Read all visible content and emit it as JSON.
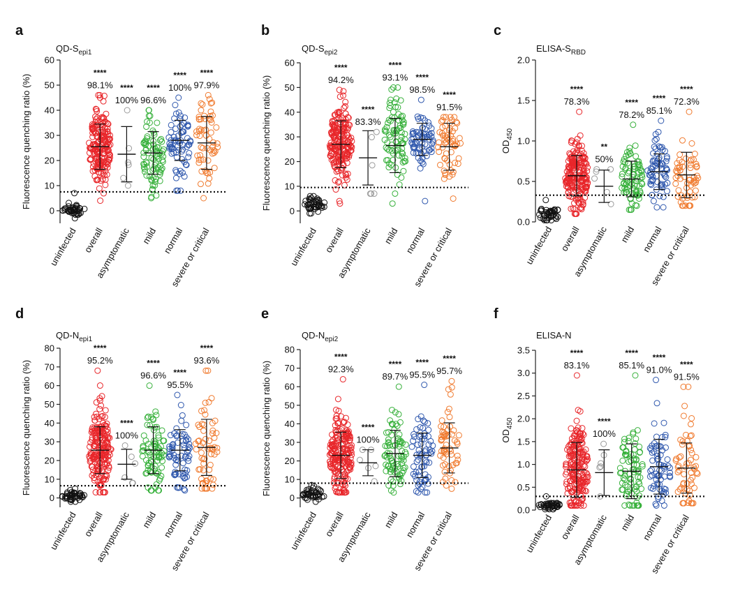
{
  "colors": {
    "uninfected": "#111111",
    "overall": "#e8262a",
    "asymptomatic": "#9a9a9a",
    "mild": "#36b03a",
    "normal": "#2e57ad",
    "severe": "#f07a2e",
    "axis": "#222222"
  },
  "chart_data": [
    {
      "type": "scatter",
      "panel_letter": "a",
      "title_main": "QD-S",
      "title_sub": "epi1",
      "ylabel": "Fluorescence quenching ratio (%)",
      "ylim": [
        -5,
        60
      ],
      "yticks": [
        "0",
        "10",
        "20",
        "30",
        "40",
        "50",
        "60"
      ],
      "threshold": 7.5,
      "categories": [
        "uninfected",
        "overall",
        "asymptomatic",
        "mild",
        "normal",
        "severe or critical"
      ],
      "groups": [
        {
          "mean": 0.5,
          "sd": 1.5,
          "min": -3,
          "max": 7,
          "n": 40
        },
        {
          "mean": 25.5,
          "sd": 9,
          "min": 4,
          "max": 46,
          "n": 200
        },
        {
          "mean": 22.5,
          "sd": 11,
          "min": 10,
          "max": 40,
          "n": 6
        },
        {
          "mean": 23,
          "sd": 8.5,
          "min": 5,
          "max": 40,
          "n": 85
        },
        {
          "mean": 28,
          "sd": 8,
          "min": 8,
          "max": 45,
          "n": 70
        },
        {
          "mean": 27,
          "sd": 10.5,
          "min": 5,
          "max": 46,
          "n": 60
        }
      ],
      "percent_labels": [
        "",
        "98.1%",
        "100%",
        "96.6%",
        "100%",
        "97.9%"
      ],
      "stars": [
        "",
        "****",
        "****",
        "****",
        "****",
        "****"
      ]
    },
    {
      "type": "scatter",
      "panel_letter": "b",
      "title_main": "QD-S",
      "title_sub": "epi2",
      "ylabel": "Fluorescence quenching ratio (%)",
      "ylim": [
        -5,
        60
      ],
      "yticks": [
        "0",
        "10",
        "20",
        "30",
        "40",
        "50",
        "60"
      ],
      "threshold": 9.5,
      "categories": [
        "uninfected",
        "overall",
        "asymptomatic",
        "mild",
        "normal",
        "severe or critical"
      ],
      "groups": [
        {
          "mean": 2.5,
          "sd": 2,
          "min": -1,
          "max": 6,
          "n": 40
        },
        {
          "mean": 27,
          "sd": 9.5,
          "min": 3,
          "max": 49,
          "n": 200
        },
        {
          "mean": 21.5,
          "sd": 11,
          "min": 7,
          "max": 32,
          "n": 6
        },
        {
          "mean": 26.5,
          "sd": 11,
          "min": 3,
          "max": 50,
          "n": 85
        },
        {
          "mean": 29,
          "sd": 6.5,
          "min": 4,
          "max": 45,
          "n": 70
        },
        {
          "mean": 26,
          "sd": 9.5,
          "min": 5,
          "max": 38,
          "n": 60
        }
      ],
      "percent_labels": [
        "",
        "94.2%",
        "83.3%",
        "93.1%",
        "98.5%",
        "91.5%"
      ],
      "stars": [
        "",
        "****",
        "****",
        "****",
        "****",
        "****"
      ]
    },
    {
      "type": "scatter",
      "panel_letter": "c",
      "title_main": "ELISA-S",
      "title_sub": "RBD",
      "ylabel": "OD450",
      "ylabel_main": "OD",
      "ylabel_sub": "450",
      "ylim": [
        0,
        2.0
      ],
      "yticks": [
        "0.0",
        "0.5",
        "1.0",
        "1.5",
        "2.0"
      ],
      "threshold": 0.33,
      "categories": [
        "uninfected",
        "overall",
        "asymptomatic",
        "mild",
        "normal",
        "severe or critical"
      ],
      "groups": [
        {
          "mean": 0.1,
          "sd": 0.05,
          "min": 0.02,
          "max": 0.27,
          "n": 40
        },
        {
          "mean": 0.57,
          "sd": 0.25,
          "min": 0.1,
          "max": 1.36,
          "n": 200
        },
        {
          "mean": 0.44,
          "sd": 0.2,
          "min": 0.22,
          "max": 0.65,
          "n": 6
        },
        {
          "mean": 0.53,
          "sd": 0.22,
          "min": 0.15,
          "max": 1.2,
          "n": 85
        },
        {
          "mean": 0.62,
          "sd": 0.22,
          "min": 0.18,
          "max": 1.25,
          "n": 70
        },
        {
          "mean": 0.58,
          "sd": 0.28,
          "min": 0.2,
          "max": 1.36,
          "n": 60
        }
      ],
      "percent_labels": [
        "",
        "78.3%",
        "50%",
        "78.2%",
        "85.1%",
        "72.3%"
      ],
      "stars": [
        "",
        "****",
        "**",
        "****",
        "****",
        "****"
      ]
    },
    {
      "type": "scatter",
      "panel_letter": "d",
      "title_main": "QD-N",
      "title_sub": "epi1",
      "ylabel": "Fluorescence quenching ratio (%)",
      "ylim": [
        -5,
        80
      ],
      "yticks": [
        "0",
        "10",
        "20",
        "30",
        "40",
        "50",
        "60",
        "70",
        "80"
      ],
      "threshold": 6.5,
      "categories": [
        "uninfected",
        "overall",
        "asymptomatic",
        "mild",
        "normal",
        "severe or critical"
      ],
      "groups": [
        {
          "mean": 1,
          "sd": 1.5,
          "min": -2,
          "max": 5,
          "n": 40
        },
        {
          "mean": 25.5,
          "sd": 12.5,
          "min": 3,
          "max": 68,
          "n": 200
        },
        {
          "mean": 18,
          "sd": 8,
          "min": 8,
          "max": 28,
          "n": 6
        },
        {
          "mean": 25.5,
          "sd": 12.5,
          "min": 4,
          "max": 60,
          "n": 85
        },
        {
          "mean": 25.5,
          "sd": 11,
          "min": 4,
          "max": 55,
          "n": 70
        },
        {
          "mean": 27,
          "sd": 15,
          "min": 5,
          "max": 68,
          "n": 60
        }
      ],
      "percent_labels": [
        "",
        "95.2%",
        "100%",
        "96.6%",
        "95.5%",
        "93.6%"
      ],
      "stars": [
        "",
        "****",
        "****",
        "****",
        "****",
        "****"
      ]
    },
    {
      "type": "scatter",
      "panel_letter": "e",
      "title_main": "QD-N",
      "title_sub": "epi2",
      "ylabel": "Fluorescence quenching ratio (%)",
      "ylim": [
        -5,
        80
      ],
      "yticks": [
        "0",
        "10",
        "20",
        "30",
        "40",
        "50",
        "60",
        "70",
        "80"
      ],
      "threshold": 8,
      "categories": [
        "uninfected",
        "overall",
        "asymptomatic",
        "mild",
        "normal",
        "severe or critical"
      ],
      "groups": [
        {
          "mean": 2,
          "sd": 2,
          "min": -2,
          "max": 7,
          "n": 40
        },
        {
          "mean": 23,
          "sd": 12.5,
          "min": 3,
          "max": 64,
          "n": 200
        },
        {
          "mean": 19,
          "sd": 7,
          "min": 9,
          "max": 26,
          "n": 6
        },
        {
          "mean": 24,
          "sd": 12.5,
          "min": 3,
          "max": 60,
          "n": 85
        },
        {
          "mean": 23,
          "sd": 12,
          "min": 3,
          "max": 61,
          "n": 70
        },
        {
          "mean": 27,
          "sd": 13.5,
          "min": 5,
          "max": 63,
          "n": 60
        }
      ],
      "percent_labels": [
        "",
        "92.3%",
        "100%",
        "89.7%",
        "95.5%",
        "95.7%"
      ],
      "stars": [
        "",
        "****",
        "****",
        "****",
        "****",
        "****"
      ]
    },
    {
      "type": "scatter",
      "panel_letter": "f",
      "title_main": "ELISA-N",
      "title_sub": "",
      "ylabel": "OD450",
      "ylabel_main": "OD",
      "ylabel_sub": "450",
      "ylim": [
        0,
        3.5
      ],
      "yticks": [
        "0.0",
        "0.5",
        "1.0",
        "1.5",
        "2.0",
        "2.5",
        "3.0",
        "3.5"
      ],
      "threshold": 0.3,
      "categories": [
        "uninfected",
        "overall",
        "asymptomatic",
        "mild",
        "normal",
        "severe or critical"
      ],
      "groups": [
        {
          "mean": 0.1,
          "sd": 0.05,
          "min": 0.02,
          "max": 0.3,
          "n": 40
        },
        {
          "mean": 0.88,
          "sd": 0.6,
          "min": 0.1,
          "max": 2.95,
          "n": 200
        },
        {
          "mean": 0.82,
          "sd": 0.5,
          "min": 0.3,
          "max": 1.45,
          "n": 6
        },
        {
          "mean": 0.85,
          "sd": 0.6,
          "min": 0.1,
          "max": 2.95,
          "n": 85
        },
        {
          "mean": 0.95,
          "sd": 0.6,
          "min": 0.1,
          "max": 2.85,
          "n": 70
        },
        {
          "mean": 0.92,
          "sd": 0.55,
          "min": 0.15,
          "max": 2.7,
          "n": 60
        }
      ],
      "percent_labels": [
        "",
        "83.1%",
        "100%",
        "85.1%",
        "91.0%",
        "91.5%"
      ],
      "stars": [
        "",
        "****",
        "****",
        "****",
        "****",
        "****"
      ]
    }
  ]
}
